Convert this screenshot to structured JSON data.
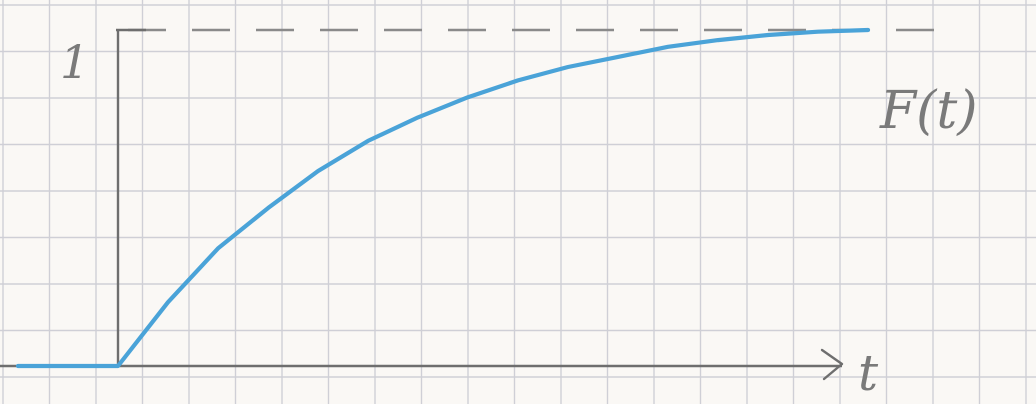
{
  "chart_data": {
    "type": "line",
    "title": "",
    "xlabel": "t",
    "ylabel": "",
    "ytick_labels": [
      "1"
    ],
    "series": [
      {
        "name": "F(t)",
        "x": [
          -1.0,
          0.0,
          0.5,
          1.0,
          1.5,
          2.0,
          2.5,
          3.0,
          3.5,
          4.0,
          4.5,
          5.0,
          5.5,
          6.0,
          6.5,
          7.0,
          7.5
        ],
        "y": [
          0.0,
          0.0,
          0.19,
          0.35,
          0.47,
          0.58,
          0.67,
          0.74,
          0.8,
          0.85,
          0.89,
          0.92,
          0.95,
          0.97,
          0.985,
          0.995,
          1.0
        ]
      }
    ],
    "asymptote": {
      "y": 1,
      "style": "dashed"
    },
    "xlim": [
      -1.2,
      8.0
    ],
    "ylim": [
      -0.15,
      1.15
    ],
    "grid": true,
    "colors": {
      "curve": "#4aa3d8",
      "axis": "#6e6e6e",
      "grid": "#cfcfd6",
      "dash": "#8a8a8a",
      "paper": "#faf8f5"
    }
  }
}
